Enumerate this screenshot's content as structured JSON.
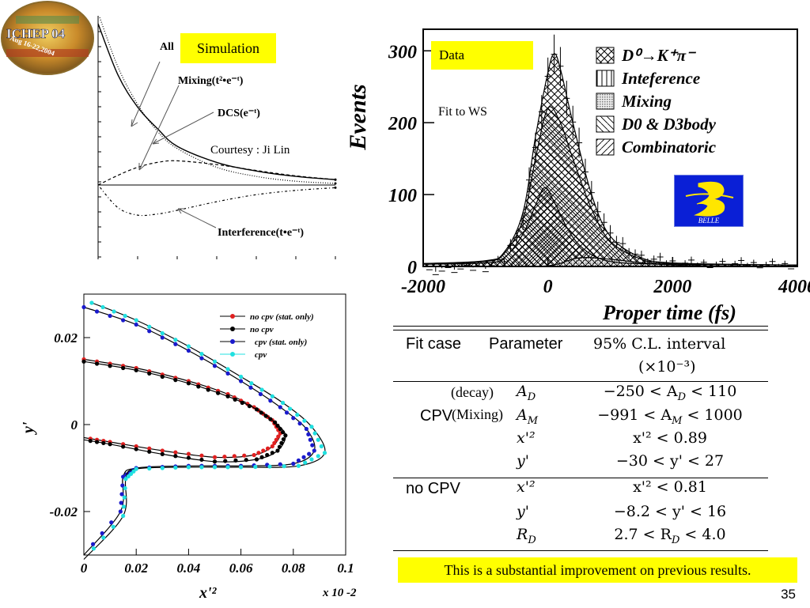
{
  "logo": {
    "name": "ICHEP 04",
    "subtitle": "Aug 16-22,2004"
  },
  "panel_simulation": {
    "badge": "Simulation",
    "labels": {
      "all": "All",
      "mixing": "Mixing(t²•e⁻ᵗ)",
      "dcs": "DCS(e⁻ᵗ)",
      "interference": "Interference(t•e⁻ᵗ)"
    },
    "courtesy": "Courtesy : Ji Lin"
  },
  "panel_data": {
    "badge": "Data",
    "fit_note": "Fit to WS",
    "belle_logo_text": "BELLE"
  },
  "chart_data": [
    {
      "type": "line",
      "title": "",
      "xlabel": "",
      "ylabel": "",
      "series": [
        {
          "name": "All",
          "x": [
            0,
            0.5,
            1,
            1.5,
            2,
            3,
            4,
            5,
            6
          ],
          "values": [
            3.0,
            2.05,
            1.45,
            1.05,
            0.72,
            0.42,
            0.26,
            0.16,
            0.1
          ]
        },
        {
          "name": "Mixing(t²•e⁻ᵗ)",
          "x": [
            0,
            0.5,
            1,
            1.5,
            2,
            3,
            4,
            5,
            6
          ],
          "values": [
            0,
            0.18,
            0.33,
            0.42,
            0.45,
            0.38,
            0.27,
            0.17,
            0.1
          ]
        },
        {
          "name": "DCS(e⁻ᵗ)",
          "x": [
            0,
            0.5,
            1,
            1.5,
            2,
            3,
            4,
            5,
            6
          ],
          "values": [
            3.2,
            2.2,
            1.5,
            1.0,
            0.68,
            0.33,
            0.16,
            0.07,
            0.03
          ]
        },
        {
          "name": "Interference(t•e⁻ᵗ)",
          "x": [
            0,
            0.5,
            1,
            1.5,
            2,
            3,
            4,
            5,
            6
          ],
          "values": [
            0,
            -0.42,
            -0.56,
            -0.54,
            -0.47,
            -0.31,
            -0.18,
            -0.1,
            -0.05
          ]
        }
      ]
    },
    {
      "type": "area",
      "title": "",
      "xlabel": "Proper time (fs)",
      "ylabel": "Events",
      "xlim": [
        -2000,
        4000
      ],
      "ylim": [
        0,
        330
      ],
      "x_ticks": [
        "-2000",
        "0",
        "2000",
        "4000"
      ],
      "y_ticks": [
        "0",
        "100",
        "200",
        "300"
      ],
      "legend_position": "top-right",
      "series": [
        {
          "name": "D⁰→K⁺π⁻",
          "x": [
            -2000,
            -1000,
            -700,
            -400,
            -200,
            0,
            100,
            200,
            400,
            700,
            1000,
            1500,
            2000,
            3000,
            4000
          ],
          "values": [
            4,
            8,
            20,
            75,
            180,
            270,
            296,
            275,
            200,
            100,
            42,
            12,
            5,
            3,
            2
          ]
        },
        {
          "name": "Inteference",
          "x": [
            -2000,
            -1000,
            0,
            500,
            1000,
            2000,
            4000
          ],
          "values": [
            0,
            0,
            0,
            5,
            3,
            0,
            0
          ]
        },
        {
          "name": "Mixing",
          "x": [
            -2000,
            -1000,
            0,
            500,
            1000,
            2000,
            4000
          ],
          "values": [
            0,
            0,
            1,
            12,
            10,
            2,
            0
          ]
        },
        {
          "name": "D0 & D3body",
          "x": [
            -2000,
            -1000,
            -700,
            -400,
            -200,
            0,
            200,
            400,
            700,
            1000,
            1500,
            2000,
            4000
          ],
          "values": [
            4,
            7,
            18,
            65,
            150,
            220,
            200,
            150,
            80,
            35,
            10,
            4,
            2
          ]
        },
        {
          "name": "Combinatoric",
          "x": [
            -2000,
            -1000,
            -700,
            -400,
            -200,
            -50,
            100,
            300,
            500,
            800,
            1200,
            2000,
            4000
          ],
          "values": [
            3,
            5,
            12,
            45,
            85,
            110,
            90,
            55,
            30,
            12,
            5,
            3,
            2
          ]
        }
      ]
    },
    {
      "type": "line",
      "title": "",
      "xlabel": "x'²",
      "ylabel": "y'",
      "x_multiplier": "x 10 -2",
      "xlim": [
        0,
        0.1
      ],
      "ylim": [
        -0.03,
        0.03
      ],
      "x_ticks": [
        "0",
        "0.02",
        "0.04",
        "0.06",
        "0.08",
        "0.1"
      ],
      "y_ticks": [
        "0.02",
        "0",
        "-0.02"
      ],
      "legend_position": "top-right",
      "series": [
        {
          "name": "no cpv (stat. only)",
          "color": "#e02020",
          "x": [
            0,
            0.02,
            0.04,
            0.055,
            0.065,
            0.072,
            0.075,
            0.072,
            0.065,
            0.05,
            0.03,
            0.01,
            0
          ],
          "values": [
            0.015,
            0.013,
            0.01,
            0.007,
            0.004,
            0.001,
            -0.002,
            -0.005,
            -0.007,
            -0.0075,
            -0.006,
            -0.004,
            -0.003
          ]
        },
        {
          "name": "no cpv",
          "color": "#000000",
          "x": [
            0,
            0.02,
            0.04,
            0.055,
            0.066,
            0.073,
            0.077,
            0.074,
            0.066,
            0.05,
            0.03,
            0.01,
            0
          ],
          "values": [
            0.0145,
            0.0125,
            0.0095,
            0.0065,
            0.0035,
            0.0005,
            -0.0025,
            -0.006,
            -0.008,
            -0.0085,
            -0.0068,
            -0.0045,
            -0.0035
          ]
        },
        {
          "name": "cpv (stat. only)",
          "color": "#1a1acc",
          "x": [
            0,
            0.02,
            0.04,
            0.06,
            0.075,
            0.085,
            0.088,
            0.08,
            0.06,
            0.04,
            0.02,
            0.015,
            0.014,
            0.0
          ],
          "values": [
            0.027,
            0.023,
            0.017,
            0.01,
            0.004,
            -0.001,
            -0.006,
            -0.009,
            -0.0095,
            -0.0095,
            -0.01,
            -0.012,
            -0.02,
            -0.03
          ]
        },
        {
          "name": "cpv",
          "color": "#20e0e0",
          "x": [
            0.003,
            0.02,
            0.04,
            0.06,
            0.076,
            0.087,
            0.092,
            0.082,
            0.06,
            0.04,
            0.02,
            0.016,
            0.015,
            0.0
          ],
          "values": [
            0.028,
            0.024,
            0.018,
            0.011,
            0.005,
            -0.0005,
            -0.0065,
            -0.0095,
            -0.0098,
            -0.0098,
            -0.0102,
            -0.0125,
            -0.021,
            -0.031
          ]
        }
      ]
    }
  ],
  "results_table": {
    "headers": [
      "Fit case",
      "Parameter",
      "95% C.L. interval",
      "(×10⁻³)"
    ],
    "cpv_label": "CPV",
    "decay_tag": "(decay)",
    "mixing_tag": "(Mixing)",
    "no_cpv_label": "no CPV",
    "rows": [
      {
        "param": "A_D",
        "interval": "−250 < A_D < 110"
      },
      {
        "param": "A_M",
        "interval": "−991 < A_M < 1000"
      },
      {
        "param": "x'²",
        "interval": "x'² < 0.89"
      },
      {
        "param": "y'",
        "interval": "−30 < y' < 27"
      },
      {
        "param": "x'²",
        "interval": "x'² < 0.81"
      },
      {
        "param": "y'",
        "interval": "−8.2 < y' < 16"
      },
      {
        "param": "R_D",
        "interval": "2.7 < R_D < 4.0"
      }
    ]
  },
  "footer_note": "This is a substantial improvement on previous results.",
  "slide_number": "35"
}
